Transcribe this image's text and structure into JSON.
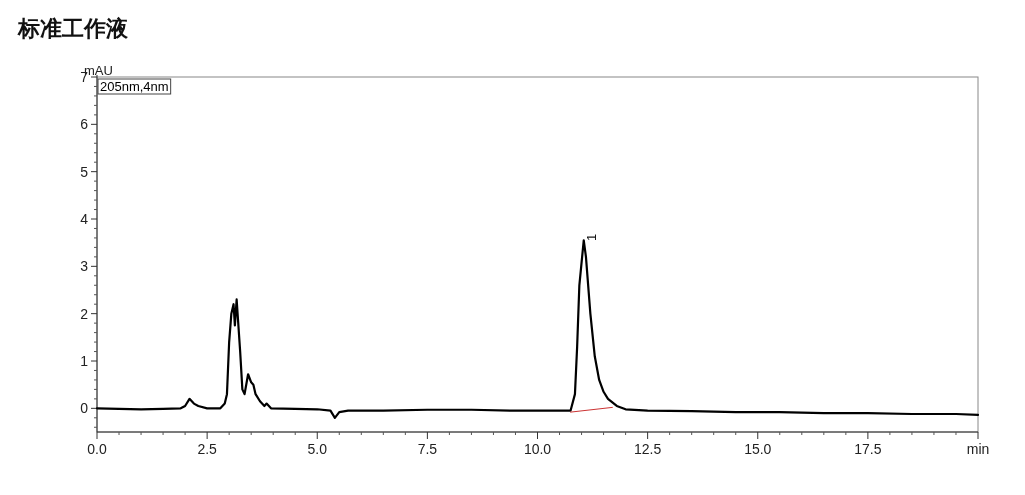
{
  "chart_data": {
    "type": "line",
    "title": "标准工作液",
    "ylabel": "mAU",
    "legend": "top left",
    "grid": false,
    "xlim": [
      0,
      20
    ],
    "xticks": [
      {
        "value": 0,
        "label": "0.0"
      },
      {
        "value": 2.5,
        "label": "2.5"
      },
      {
        "value": 5,
        "label": "5.0"
      },
      {
        "value": 7.5,
        "label": "7.5"
      },
      {
        "value": 10,
        "label": "10.0"
      },
      {
        "value": 12.5,
        "label": "12.5"
      },
      {
        "value": 15,
        "label": "15.0"
      },
      {
        "value": 17.5,
        "label": "17.5"
      },
      {
        "value": 20,
        "label": "min"
      }
    ],
    "ylim": [
      -0.5,
      7
    ],
    "yticks": [
      0,
      1,
      2,
      3,
      4,
      5,
      6,
      7
    ],
    "series": [
      {
        "name": "205nm,4nm",
        "color": "#000000",
        "x": [
          0,
          0.5,
          1.0,
          1.5,
          1.9,
          2.0,
          2.1,
          2.2,
          2.3,
          2.5,
          2.8,
          2.9,
          2.95,
          3.0,
          3.05,
          3.1,
          3.13,
          3.17,
          3.25,
          3.3,
          3.35,
          3.43,
          3.5,
          3.55,
          3.6,
          3.7,
          3.8,
          3.85,
          3.95,
          4.5,
          5.0,
          5.3,
          5.4,
          5.5,
          5.7,
          6.5,
          7.5,
          8.5,
          9.5,
          10.5,
          10.75,
          10.85,
          10.9,
          10.95,
          11.05,
          11.1,
          11.2,
          11.3,
          11.4,
          11.5,
          11.6,
          11.8,
          12.0,
          12.5,
          13.5,
          14.5,
          15.5,
          16.5,
          17.5,
          18.5,
          19.5,
          20.0
        ],
        "values": [
          0.0,
          -0.01,
          -0.02,
          -0.01,
          0.0,
          0.05,
          0.2,
          0.1,
          0.05,
          0.0,
          0.0,
          0.1,
          0.3,
          1.4,
          2.0,
          2.2,
          1.75,
          2.3,
          1.2,
          0.4,
          0.3,
          0.72,
          0.55,
          0.5,
          0.3,
          0.15,
          0.05,
          0.1,
          0.0,
          -0.01,
          -0.02,
          -0.05,
          -0.2,
          -0.08,
          -0.05,
          -0.05,
          -0.03,
          -0.03,
          -0.05,
          -0.05,
          -0.05,
          0.3,
          1.3,
          2.6,
          3.55,
          3.2,
          2.0,
          1.1,
          0.6,
          0.35,
          0.2,
          0.05,
          -0.02,
          -0.05,
          -0.06,
          -0.08,
          -0.08,
          -0.1,
          -0.1,
          -0.12,
          -0.12,
          -0.14
        ]
      },
      {
        "color": "#cc3333",
        "x": [
          10.75,
          11.7
        ],
        "values": [
          -0.08,
          0.02
        ]
      }
    ],
    "annotations": [
      {
        "text": "1",
        "x": 11.05,
        "y": 3.55
      }
    ]
  }
}
